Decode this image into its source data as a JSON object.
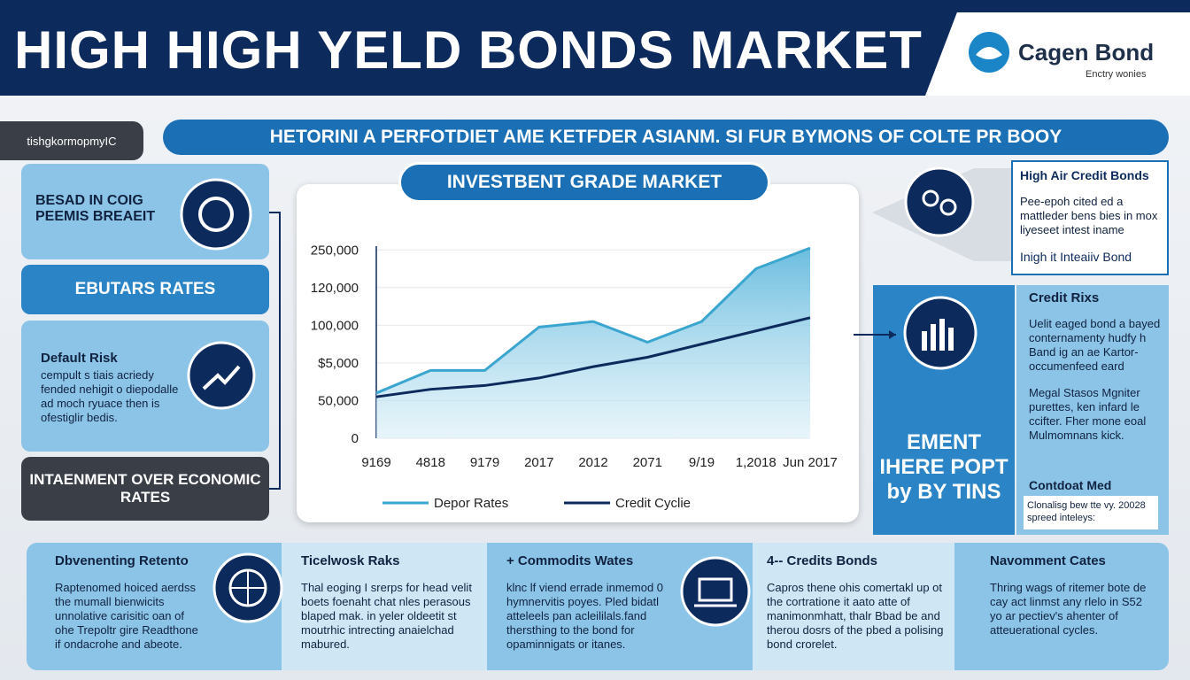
{
  "header": {
    "title": "HIGH HIGH YELD BONDS MARKET",
    "logo": "Cagen Bond",
    "tagline": "Enctry wonies"
  },
  "tab": "tishgkormopmyIC",
  "banner": "HETORINI A PERFOTDIET AME KETFDER ASIANM. SI FUR BYMONS OF COLTE PR BOOY",
  "left": {
    "panel1": "BESAD IN COIG PEEMIS BREAEIT",
    "panel2": "EBUTARS RATES",
    "panel3": {
      "title": "Default Risk",
      "body": "cempult s tiais acriedy fended nehigit o diepodalle ad moch ryuace then is ofestiglir bedis."
    },
    "panel4": "INTAENMENT OVER ECONOMIC RATES"
  },
  "right": {
    "box1": {
      "title": "High Air Credit Bonds",
      "body": "Pee-epoh cited ed a mattleder bens bies in mox liyeseet intest iname",
      "footer": "Inigh it Inteaiiv Bond"
    },
    "callout": "EMENT IHERE POPT by BY TINS",
    "box2": {
      "title": "Credit Rixs",
      "body1": "Uelit eaged bond a bayed conternamenty hudfy h Band ig an ae Kartor- occumenfeed eard",
      "body2": "Megal Stasos Mgniter purettes, ken infard le ccifter. Fher mone eoal Mulmomnans kick.",
      "sub": "Contdoat Med",
      "body3": "Clonalisg bew tte vy. 20028 spreed inteleys:"
    }
  },
  "bottom": [
    {
      "title": "Dbvenenting Retento",
      "body": "Raptenomed hoiced aerdss the mumall bienwicits unnolative carisitic oan of ohe Trepoltr gire Readthone if ondacrohe and abeote."
    },
    {
      "title": "Ticelwosk Raks",
      "body": "Thal eoging I srerps for head velit boets foenaht chat nles perasous blaped mak. in yeler oldeetit st moutrhic intrecting anaielchad mabured."
    },
    {
      "title": "+ Commodits Wates",
      "body": "klnc lf viend errade inmemod 0 hymnervitis poyes. Pled bidatl atteleels pan acleililals.fand thersthing to the bond for opaminnigats or itanes."
    },
    {
      "title": "4-- Credits Bonds",
      "body": "Capros thene ohis comertakl up ot the cortratione it aato atte of manimonmhatt, thalr Bbad be and therou dosrs of the pbed a polising bond crorelet."
    },
    {
      "title": "Navomment Cates",
      "body": "Thring wags of ritemer bote de cay act linmst any rlelo in S52 yo ar pectiev's ahenter of atteuerational cycles."
    }
  ],
  "chart_data": {
    "type": "line",
    "title": "INVESTBENT GRADE MARKET",
    "categories": [
      "9169",
      "4818",
      "9179",
      "2017",
      "2012",
      "2071",
      "9/19",
      "1,2018",
      "Jun 2017"
    ],
    "series": [
      {
        "name": "Depor Rates",
        "color": "#3aa6cf",
        "fill": true,
        "values": [
          1.2,
          1.8,
          1.8,
          2.95,
          3.1,
          2.55,
          3.1,
          4.5,
          5.05
        ]
      },
      {
        "name": "Credit Cyclie",
        "color": "#0d2a5c",
        "values": [
          1.1,
          1.3,
          1.4,
          1.6,
          1.9,
          2.15,
          2.5,
          2.85,
          3.2
        ]
      }
    ],
    "ylim": [
      0,
      5.1
    ],
    "yticks": [
      {
        "value": 0,
        "label": "0"
      },
      {
        "value": 1,
        "label": "50,000"
      },
      {
        "value": 2,
        "label": "$5,000"
      },
      {
        "value": 3,
        "label": "100,000"
      },
      {
        "value": 4,
        "label": "120,000"
      },
      {
        "value": 5,
        "label": "250,000"
      }
    ],
    "grid": true
  }
}
